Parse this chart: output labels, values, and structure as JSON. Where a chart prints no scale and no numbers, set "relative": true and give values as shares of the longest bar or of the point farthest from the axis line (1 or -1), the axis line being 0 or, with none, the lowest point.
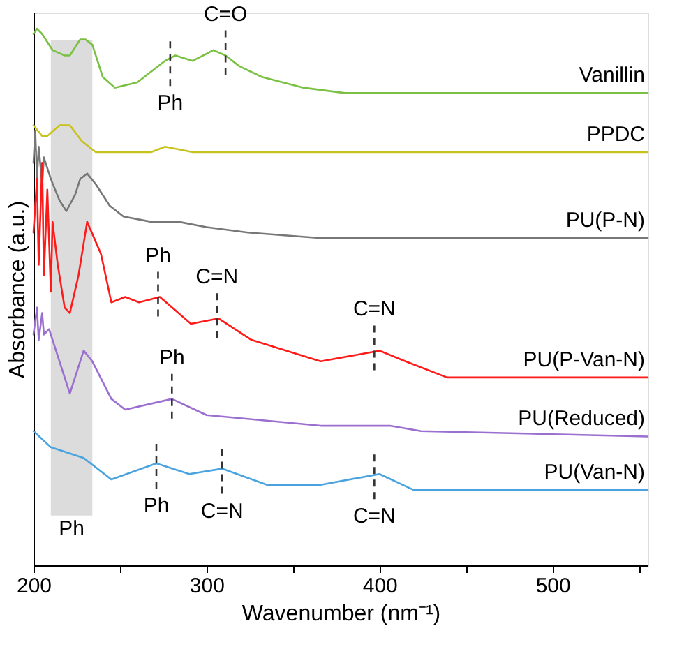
{
  "chart_data": {
    "type": "line",
    "relative": true,
    "xlabel": "Wavenumber (nm⁻¹)",
    "ylabel": "Absorbance (a.u.)",
    "xlim": [
      200,
      555
    ],
    "xticks": [
      200,
      {
        "value": 250,
        "label": null
      },
      300,
      {
        "value": 350,
        "label": null
      },
      400,
      {
        "value": 450,
        "label": null
      },
      500,
      {
        "value": 550,
        "label": null
      }
    ],
    "legend": false,
    "grid": false,
    "line_style": "solid",
    "marker": "none",
    "bands": [
      {
        "axis": "x",
        "from": 210,
        "to": 234,
        "label": "Ph",
        "color": "#dcdcdc"
      }
    ],
    "series": [
      {
        "name": "Vanillin",
        "color": "#7ac143",
        "x": [
          200,
          202,
          205,
          211,
          218,
          221,
          227,
          230,
          234,
          240,
          247,
          260,
          276,
          282,
          292,
          304,
          311,
          319,
          332,
          356,
          380,
          555
        ],
        "values": [
          0.99,
          1.0,
          0.99,
          0.96,
          0.95,
          0.95,
          0.98,
          0.98,
          0.97,
          0.91,
          0.89,
          0.9,
          0.94,
          0.95,
          0.94,
          0.96,
          0.95,
          0.93,
          0.91,
          0.89,
          0.88,
          0.88
        ]
      },
      {
        "name": "PPDC",
        "color": "#c8c21e",
        "x": [
          200,
          205,
          208,
          215,
          221,
          228,
          236,
          244,
          268,
          276,
          292,
          555
        ],
        "values": [
          0.82,
          0.8,
          0.8,
          0.82,
          0.82,
          0.79,
          0.77,
          0.77,
          0.77,
          0.78,
          0.77,
          0.77
        ]
      },
      {
        "name": "PU(P-N)",
        "color": "#777777",
        "x": [
          200,
          201,
          202,
          203,
          205,
          206,
          210,
          215,
          219,
          224,
          227,
          231,
          236,
          244,
          252,
          268,
          284,
          300,
          324,
          365,
          405,
          555
        ],
        "values": [
          0.75,
          0.81,
          0.72,
          0.78,
          0.71,
          0.76,
          0.72,
          0.68,
          0.66,
          0.69,
          0.72,
          0.73,
          0.71,
          0.67,
          0.65,
          0.64,
          0.64,
          0.63,
          0.62,
          0.61,
          0.61,
          0.61
        ]
      },
      {
        "name": "PU(P-Van-N)",
        "color": "#ff1a1a",
        "x": [
          200,
          202,
          203,
          205,
          206,
          208,
          210,
          211,
          214,
          218,
          221,
          226,
          231,
          239,
          245,
          253,
          261,
          273,
          291,
          307,
          326,
          366,
          400,
          415,
          439,
          555
        ],
        "values": [
          0.62,
          0.72,
          0.56,
          0.75,
          0.54,
          0.7,
          0.51,
          0.64,
          0.56,
          0.48,
          0.47,
          0.54,
          0.64,
          0.58,
          0.49,
          0.5,
          0.49,
          0.5,
          0.45,
          0.46,
          0.42,
          0.38,
          0.4,
          0.38,
          0.35,
          0.35
        ]
      },
      {
        "name": "PU(Reduced)",
        "color": "#9b6fd0",
        "x": [
          200,
          202,
          203,
          205,
          206,
          209,
          213,
          218,
          221,
          229,
          234,
          245,
          253,
          280,
          300,
          366,
          406,
          424,
          555
        ],
        "values": [
          0.43,
          0.48,
          0.42,
          0.47,
          0.43,
          0.44,
          0.4,
          0.35,
          0.32,
          0.4,
          0.38,
          0.31,
          0.29,
          0.31,
          0.28,
          0.26,
          0.26,
          0.25,
          0.24
        ]
      },
      {
        "name": "PU(Van-N)",
        "color": "#4aa3df",
        "x": [
          200,
          210,
          229,
          245,
          271,
          290,
          309,
          335,
          366,
          400,
          420,
          447,
          555
        ],
        "values": [
          0.25,
          0.22,
          0.2,
          0.16,
          0.19,
          0.17,
          0.18,
          0.15,
          0.15,
          0.17,
          0.14,
          0.14,
          0.14
        ]
      }
    ],
    "annotations": [
      {
        "text": "C=O",
        "x": 311,
        "y": 0.95
      },
      {
        "text": "Ph",
        "x": 279,
        "y": 0.94
      },
      {
        "text": "Ph",
        "x": 272,
        "y": 0.5
      },
      {
        "text": "C=N",
        "x": 306,
        "y": 0.46
      },
      {
        "text": "C=N",
        "x": 397,
        "y": 0.4
      },
      {
        "text": "Ph",
        "x": 280,
        "y": 0.31
      },
      {
        "text": "Ph",
        "x": 271,
        "y": 0.19
      },
      {
        "text": "C=N",
        "x": 309,
        "y": 0.18
      },
      {
        "text": "C=N",
        "x": 397,
        "y": 0.17
      }
    ]
  }
}
